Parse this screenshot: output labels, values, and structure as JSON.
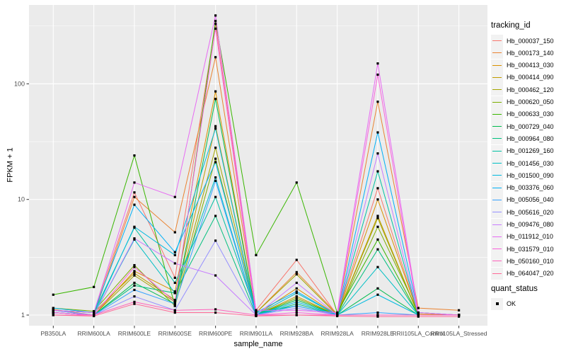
{
  "chart": {
    "x_axis_title": "sample_name",
    "y_axis_title": "FPKM + 1",
    "legend_title": "tracking_id",
    "quant_legend_title": "quant_status",
    "quant_legend_item": "OK"
  },
  "colors": {
    "panel_bg": "#EBEBEB",
    "gridline": "#FFFFFF",
    "tick_mark": "#333333",
    "axis_text": "#4D4D4D",
    "point": "#000000"
  },
  "chart_data": {
    "type": "line",
    "title": "",
    "xlabel": "sample_name",
    "ylabel": "FPKM + 1",
    "x_type": "categorical",
    "y_scale": "log10",
    "y_ticks": [
      1,
      10,
      100
    ],
    "y_minor_ticks": [
      3.162,
      31.62,
      316.2
    ],
    "ylim": [
      0.81,
      465
    ],
    "grid": true,
    "legend_position": "right",
    "point_marker": "filled-square",
    "point_status_legend": {
      "title": "quant_status",
      "items": [
        "OK"
      ]
    },
    "categories": [
      "PB350LA",
      "RRIM600LA",
      "RRIM600LE",
      "RRIM600SE",
      "RRIM600PE",
      "RRIM901LA",
      "RRIM928BA",
      "RRIM928LA",
      "RRIM928LE",
      "RRII105LA_Control",
      "RRII105LA_Stressed"
    ],
    "series": [
      {
        "name": "Hb_000037_150",
        "color": "#F8766D",
        "values": [
          1.1,
          1.05,
          11.5,
          2.1,
          330,
          1.1,
          3.0,
          1.0,
          12.5,
          1.0,
          1.0
        ]
      },
      {
        "name": "Hb_000173_140",
        "color": "#EA8331",
        "values": [
          1.12,
          1.0,
          10.5,
          5.2,
          170,
          1.05,
          2.35,
          1.02,
          70,
          1.15,
          1.1
        ]
      },
      {
        "name": "Hb_000413_030",
        "color": "#D89000",
        "values": [
          1.05,
          1.0,
          2.4,
          1.6,
          86,
          1.0,
          1.7,
          1.0,
          10.0,
          1.02,
          1.0
        ]
      },
      {
        "name": "Hb_000414_090",
        "color": "#C09B00",
        "values": [
          1.1,
          1.05,
          2.3,
          1.35,
          43,
          1.0,
          1.45,
          1.0,
          7.2,
          1.0,
          1.0
        ]
      },
      {
        "name": "Hb_000462_120",
        "color": "#A3A500",
        "values": [
          1.05,
          1.0,
          2.2,
          1.3,
          28,
          1.05,
          2.25,
          1.0,
          6.9,
          1.0,
          1.0
        ]
      },
      {
        "name": "Hb_000620_050",
        "color": "#7CAE00",
        "values": [
          1.15,
          1.08,
          2.7,
          1.2,
          22.5,
          1.0,
          1.4,
          1.0,
          5.8,
          1.05,
          1.0
        ]
      },
      {
        "name": "Hb_000633_030",
        "color": "#39B600",
        "values": [
          1.5,
          1.75,
          24.0,
          1.2,
          350,
          3.3,
          14.0,
          1.05,
          4.5,
          1.0,
          1.0
        ]
      },
      {
        "name": "Hb_000729_040",
        "color": "#00BB4E",
        "values": [
          1.1,
          1.0,
          1.9,
          1.25,
          74,
          1.0,
          1.35,
          1.0,
          1.7,
          1.0,
          1.0
        ]
      },
      {
        "name": "Hb_000964_080",
        "color": "#00BF7D",
        "values": [
          1.05,
          1.0,
          1.8,
          1.55,
          7.2,
          1.0,
          1.25,
          1.0,
          3.7,
          1.0,
          1.0
        ]
      },
      {
        "name": "Hb_001269_160",
        "color": "#00C1A3",
        "values": [
          1.1,
          1.05,
          5.7,
          1.9,
          10.5,
          1.05,
          1.2,
          1.0,
          17.5,
          1.0,
          1.0
        ]
      },
      {
        "name": "Hb_001456_030",
        "color": "#00BFC4",
        "values": [
          1.05,
          1.0,
          4.5,
          1.55,
          15.5,
          1.0,
          1.55,
          1.0,
          2.6,
          1.0,
          1.0
        ]
      },
      {
        "name": "Hb_001500_090",
        "color": "#00BAE0",
        "values": [
          1.1,
          1.0,
          5.8,
          3.3,
          41,
          1.0,
          1.3,
          1.0,
          1.5,
          1.0,
          1.0
        ]
      },
      {
        "name": "Hb_003376_060",
        "color": "#00B0F6",
        "values": [
          1.15,
          1.05,
          9.0,
          3.5,
          21,
          1.05,
          1.6,
          1.0,
          38,
          1.05,
          1.0
        ]
      },
      {
        "name": "Hb_005056_040",
        "color": "#35A2FF",
        "values": [
          1.05,
          1.0,
          1.65,
          1.25,
          14.5,
          1.0,
          1.2,
          1.0,
          1.05,
          1.0,
          1.0
        ]
      },
      {
        "name": "Hb_005616_020",
        "color": "#9590FF",
        "values": [
          1.1,
          1.0,
          1.45,
          1.1,
          4.4,
          1.0,
          1.15,
          1.0,
          1.0,
          1.0,
          1.0
        ]
      },
      {
        "name": "Hb_009476_080",
        "color": "#C77CFF",
        "values": [
          1.05,
          1.0,
          4.6,
          2.8,
          2.2,
          1.0,
          1.9,
          1.0,
          25,
          1.0,
          1.0
        ]
      },
      {
        "name": "Hb_011912_010",
        "color": "#E76BF3",
        "values": [
          1.1,
          1.05,
          14.0,
          10.5,
          390,
          1.1,
          1.1,
          1.05,
          150,
          1.05,
          1.0
        ]
      },
      {
        "name": "Hb_031579_010",
        "color": "#FA62DB",
        "values": [
          1.05,
          1.0,
          2.6,
          1.3,
          300,
          1.0,
          1.05,
          1.0,
          120,
          1.0,
          1.0
        ]
      },
      {
        "name": "Hb_050160_010",
        "color": "#FF62BC",
        "values": [
          1.0,
          1.0,
          1.3,
          1.1,
          1.12,
          1.0,
          1.0,
          1.0,
          1.0,
          1.0,
          1.0
        ]
      },
      {
        "name": "Hb_064047_020",
        "color": "#FF6A98",
        "values": [
          1.0,
          0.98,
          1.25,
          1.05,
          1.05,
          0.98,
          1.0,
          0.98,
          0.97,
          0.97,
          0.97
        ]
      }
    ]
  }
}
